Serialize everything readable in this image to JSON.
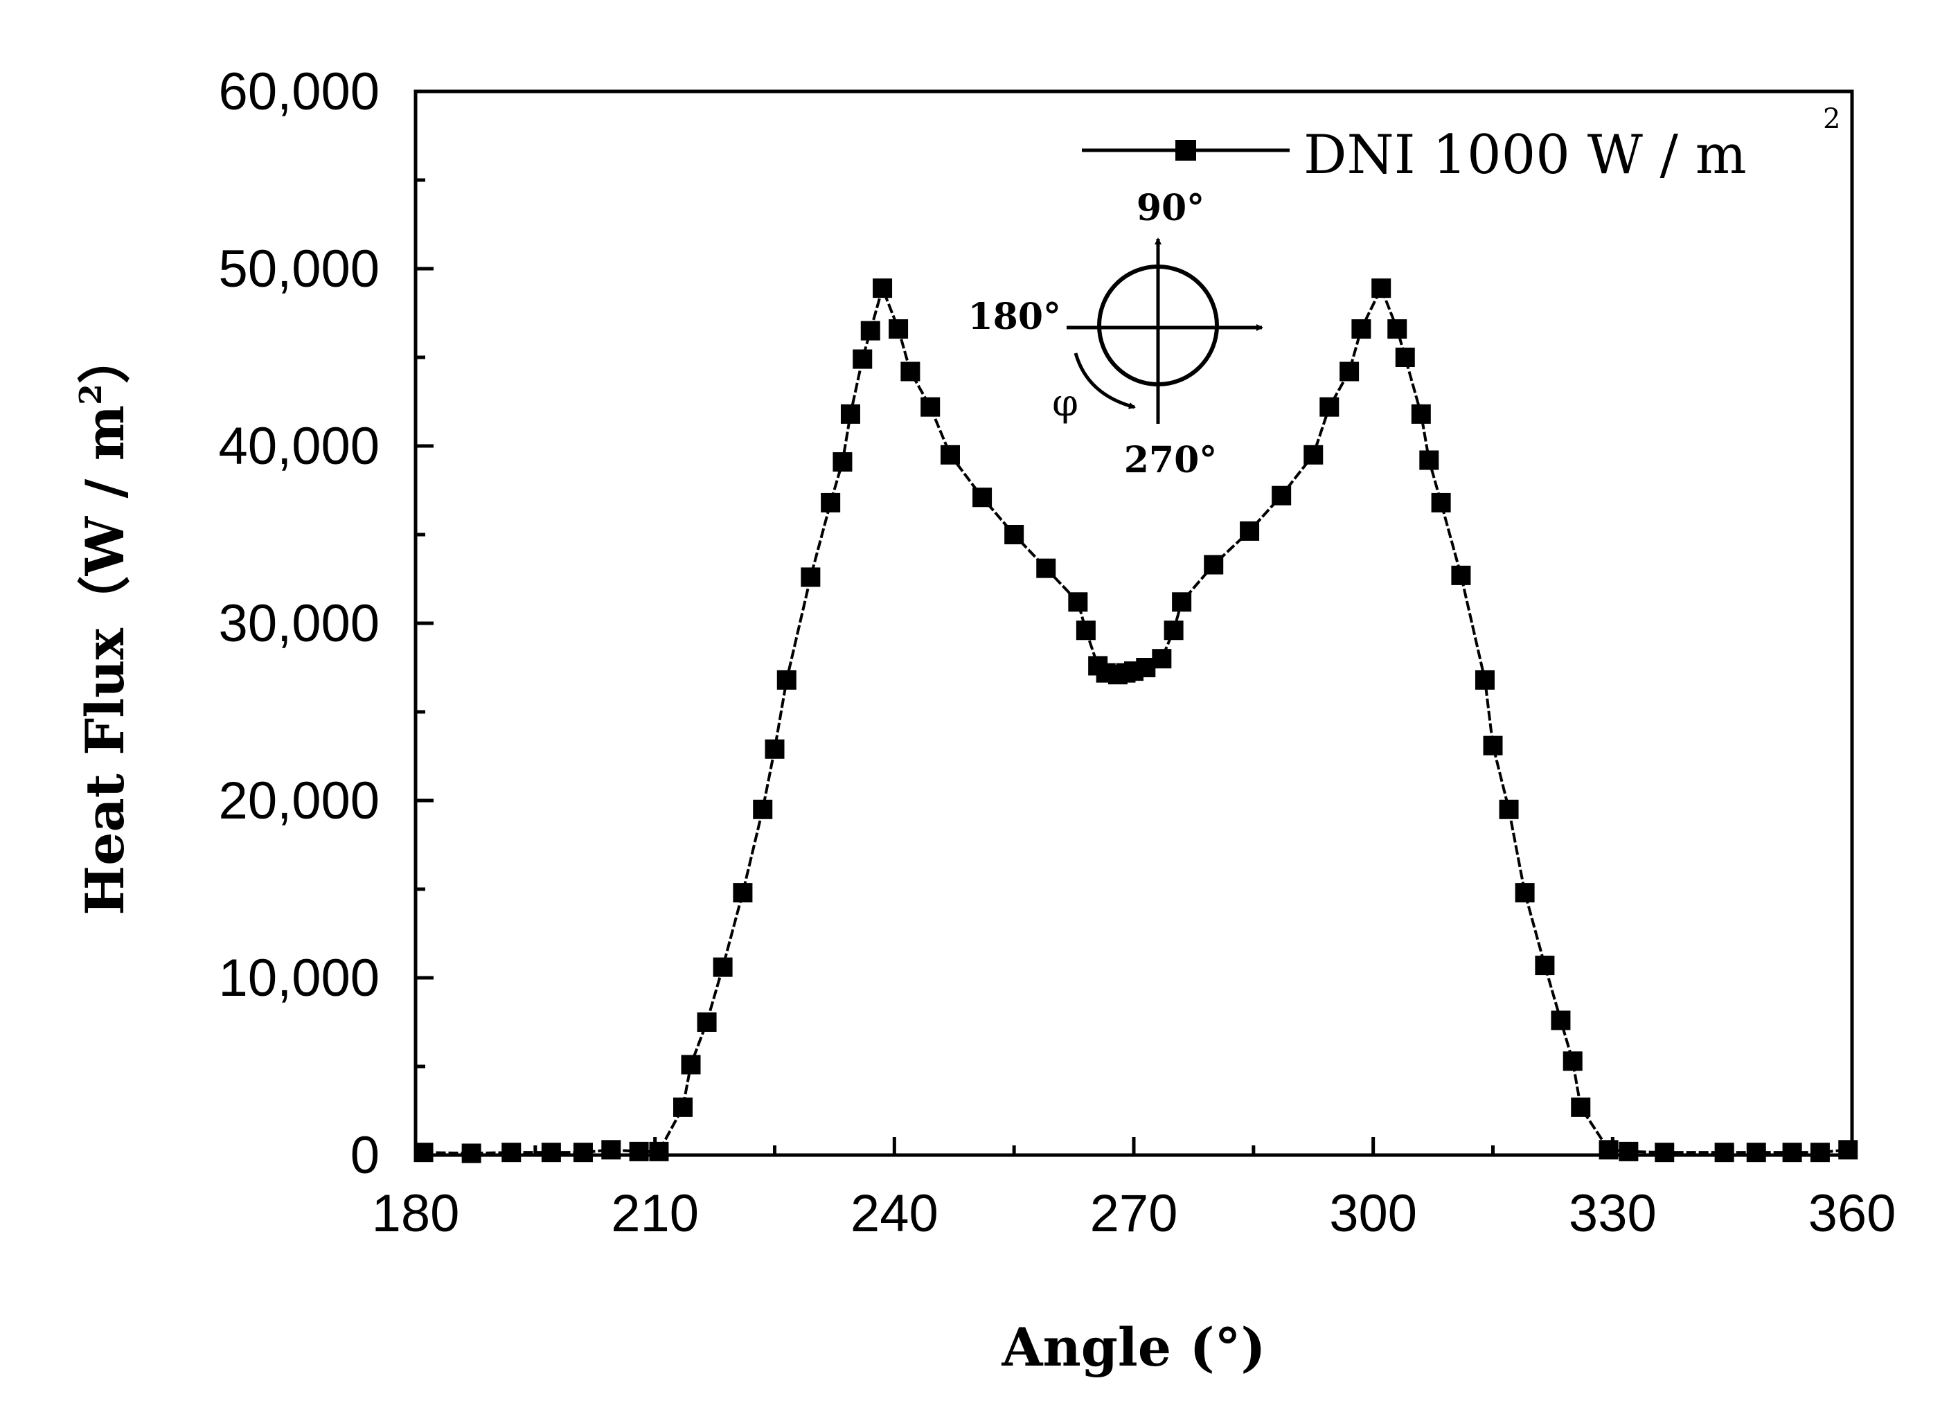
{
  "chart_data": {
    "type": "line",
    "title": "",
    "xlabel": "Angle (°)",
    "ylabel_main": "Heat Flux（W / m",
    "ylabel_sup": "2",
    "ylabel_end": "）",
    "xlim": [
      180,
      360
    ],
    "ylim": [
      0,
      60000
    ],
    "xticks": [
      180,
      210,
      240,
      270,
      300,
      330,
      360
    ],
    "xtick_labels": [
      "180",
      "210",
      "240",
      "270",
      "300",
      "330",
      "360"
    ],
    "yticks": [
      0,
      10000,
      20000,
      30000,
      40000,
      50000,
      60000
    ],
    "ytick_labels": [
      "0",
      "10,000",
      "20,000",
      "30,000",
      "40,000",
      "50,000",
      "60,000"
    ],
    "legend": {
      "position": "top-right",
      "label": "DNI 1000 W / m",
      "label_sup": "2"
    },
    "series": [
      {
        "name": "DNI 1000 W / m2",
        "marker": "square",
        "color": "#000000",
        "x": [
          181,
          187,
          192,
          197,
          201,
          204.5,
          208,
          210.5,
          213.5,
          214.5,
          216.5,
          218.5,
          221,
          223.5,
          225,
          226.5,
          229.5,
          232,
          233.5,
          234.5,
          236,
          237,
          238.5,
          240.5,
          242,
          244.5,
          247,
          251,
          255,
          259,
          263,
          264,
          265.5,
          266.5,
          268,
          269,
          270,
          271.5,
          273.5,
          275,
          276,
          280,
          284.5,
          288.5,
          292.5,
          294.5,
          297,
          298.5,
          301,
          303,
          304,
          306,
          307,
          308.5,
          311,
          314,
          315,
          317,
          319,
          321.5,
          323.5,
          325,
          326,
          329.5,
          332,
          336.5,
          344,
          348,
          352.5,
          356,
          359.5
        ],
        "y": [
          150,
          100,
          150,
          150,
          150,
          300,
          200,
          200,
          2700,
          5100,
          7500,
          10600,
          14800,
          19500,
          22900,
          26800,
          32600,
          36800,
          39100,
          41800,
          44900,
          46500,
          48900,
          46600,
          44200,
          42200,
          39500,
          37100,
          35000,
          33100,
          31200,
          29600,
          27600,
          27200,
          27100,
          27200,
          27300,
          27500,
          28000,
          29600,
          31200,
          33300,
          35200,
          37200,
          39500,
          42200,
          44200,
          46600,
          48900,
          46600,
          45000,
          41800,
          39200,
          36800,
          32700,
          26800,
          23100,
          19500,
          14800,
          10700,
          7600,
          5300,
          2700,
          300,
          200,
          150,
          150,
          150,
          150,
          150,
          300
        ]
      }
    ],
    "inset": {
      "label_top": "90°",
      "label_left": "180°",
      "label_bottom": "270°",
      "label_phi": "φ"
    }
  }
}
